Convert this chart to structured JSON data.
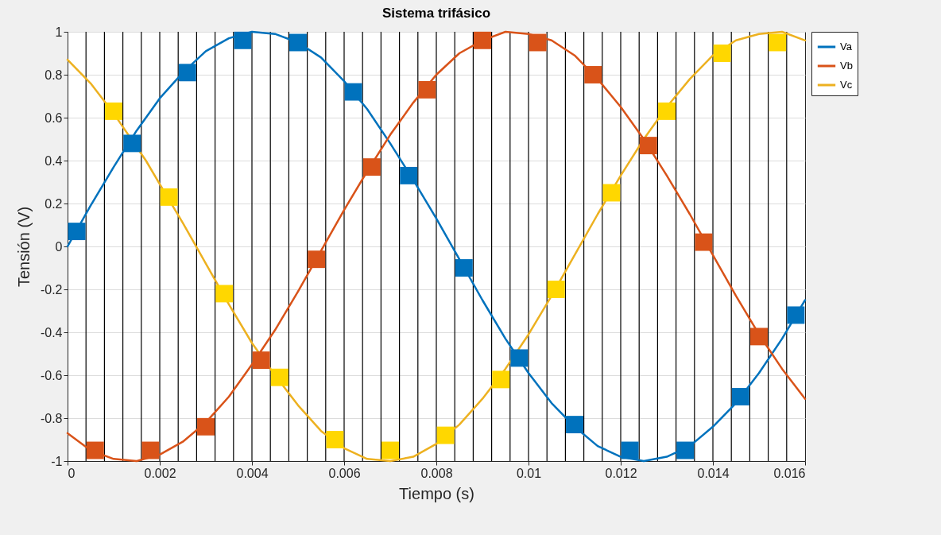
{
  "chart_data": {
    "type": "line",
    "title": "Sistema trifásico",
    "xlabel": "Tiempo (s)",
    "ylabel": "Tensión (V)",
    "xlim": [
      0,
      0.016
    ],
    "xticks": [
      0,
      0.002,
      0.004,
      0.006,
      0.008,
      0.01,
      0.012,
      0.014,
      0.016
    ],
    "ylim": [
      -1,
      1
    ],
    "yticks": [
      -1,
      -0.8,
      -0.6,
      -0.4,
      -0.2,
      0,
      0.2,
      0.4,
      0.6,
      0.8,
      1
    ],
    "grid": "y",
    "legend": "top right",
    "x": [
      0,
      0.0005,
      0.001,
      0.0015,
      0.002,
      0.0025,
      0.003,
      0.0035,
      0.004,
      0.0045,
      0.005,
      0.0055,
      0.006,
      0.0065,
      0.007,
      0.0075,
      0.008,
      0.0085,
      0.009,
      0.0095,
      0.01,
      0.0105,
      0.011,
      0.0115,
      0.012,
      0.0125,
      0.013,
      0.0135,
      0.014,
      0.0145,
      0.015,
      0.0155,
      0.016
    ],
    "series": [
      {
        "name": "Va",
        "color": "#0072bd",
        "values": [
          0,
          0.19,
          0.37,
          0.54,
          0.69,
          0.81,
          0.91,
          0.97,
          1.0,
          0.99,
          0.95,
          0.88,
          0.77,
          0.64,
          0.48,
          0.31,
          0.13,
          -0.06,
          -0.25,
          -0.43,
          -0.59,
          -0.73,
          -0.84,
          -0.93,
          -0.98,
          -1.0,
          -0.98,
          -0.93,
          -0.84,
          -0.73,
          -0.59,
          -0.43,
          -0.25
        ]
      },
      {
        "name": "Vb",
        "color": "#d95319",
        "values": [
          -0.87,
          -0.95,
          -0.99,
          -1.0,
          -0.97,
          -0.91,
          -0.82,
          -0.7,
          -0.55,
          -0.39,
          -0.21,
          -0.02,
          0.17,
          0.35,
          0.52,
          0.67,
          0.8,
          0.9,
          0.96,
          1.0,
          0.99,
          0.96,
          0.89,
          0.78,
          0.65,
          0.5,
          0.33,
          0.15,
          -0.04,
          -0.23,
          -0.41,
          -0.57,
          -0.71
        ]
      },
      {
        "name": "Vc",
        "color": "#edb120",
        "x": [
          0,
          0.0005,
          0.001,
          0.0017,
          0.002,
          0.0025,
          0.003,
          0.0035,
          0.004,
          0.0045,
          0.005,
          0.0055,
          0.006,
          0.0065,
          0.007,
          0.0075,
          0.008,
          0.0085,
          0.009,
          0.0095,
          0.01,
          0.0105,
          0.011,
          0.0115,
          0.012,
          0.0125,
          0.013,
          0.0135,
          0.014,
          0.0145,
          0.015,
          0.0155,
          0.016
        ],
        "values": [
          0.87,
          0.76,
          0.62,
          0.4,
          0.29,
          0.11,
          -0.08,
          -0.27,
          -0.45,
          -0.6,
          -0.74,
          -0.86,
          -0.94,
          -0.99,
          -1.0,
          -0.98,
          -0.92,
          -0.83,
          -0.71,
          -0.57,
          -0.41,
          -0.23,
          -0.04,
          0.15,
          0.33,
          0.5,
          0.65,
          0.78,
          0.89,
          0.96,
          0.99,
          1.0,
          0.96
        ]
      },
      {
        "type": "scatter",
        "marker": "square",
        "color": "#0072bd",
        "x": [
          0.0002,
          0.0014,
          0.0026,
          0.0038,
          0.005,
          0.0062,
          0.0074,
          0.0086,
          0.0098,
          0.011,
          0.0122,
          0.0134,
          0.0146,
          0.0158
        ],
        "values": [
          0.07,
          0.48,
          0.81,
          0.96,
          0.95,
          0.72,
          0.33,
          -0.1,
          -0.52,
          -0.83,
          -0.95,
          -0.95,
          -0.7,
          -0.32
        ]
      },
      {
        "type": "scatter",
        "marker": "square",
        "color": "#d95319",
        "x": [
          0.0006,
          0.0018,
          0.003,
          0.0042,
          0.0054,
          0.0066,
          0.0078,
          0.009,
          0.0102,
          0.0114,
          0.0126,
          0.0138,
          0.015
        ],
        "values": [
          -0.95,
          -0.95,
          -0.84,
          -0.53,
          -0.06,
          0.37,
          0.73,
          0.96,
          0.95,
          0.8,
          0.47,
          0.02,
          -0.42
        ]
      },
      {
        "type": "scatter",
        "marker": "square",
        "color": "#ffd700",
        "x": [
          0.001,
          0.0022,
          0.0034,
          0.0046,
          0.0058,
          0.007,
          0.0082,
          0.0094,
          0.0106,
          0.0118,
          0.013,
          0.0142,
          0.0154
        ],
        "values": [
          0.63,
          0.23,
          -0.22,
          -0.61,
          -0.9,
          -0.95,
          -0.88,
          -0.62,
          -0.2,
          0.25,
          0.63,
          0.9,
          0.95
        ]
      }
    ],
    "ref_lines": [
      {
        "axis": "x",
        "value": 0.0004,
        "color": "#000000"
      },
      {
        "axis": "x",
        "value": 0.0008,
        "color": "#000000"
      },
      {
        "axis": "x",
        "value": 0.0012,
        "color": "#000000"
      },
      {
        "axis": "x",
        "value": 0.0016,
        "color": "#000000"
      },
      {
        "axis": "x",
        "value": 0.002,
        "color": "#000000"
      },
      {
        "axis": "x",
        "value": 0.0024,
        "color": "#000000"
      },
      {
        "axis": "x",
        "value": 0.0028,
        "color": "#000000"
      },
      {
        "axis": "x",
        "value": 0.0032,
        "color": "#000000"
      },
      {
        "axis": "x",
        "value": 0.0036,
        "color": "#000000"
      },
      {
        "axis": "x",
        "value": 0.004,
        "color": "#000000"
      },
      {
        "axis": "x",
        "value": 0.0044,
        "color": "#000000"
      },
      {
        "axis": "x",
        "value": 0.0048,
        "color": "#000000"
      },
      {
        "axis": "x",
        "value": 0.0052,
        "color": "#000000"
      },
      {
        "axis": "x",
        "value": 0.0056,
        "color": "#000000"
      },
      {
        "axis": "x",
        "value": 0.006,
        "color": "#000000"
      },
      {
        "axis": "x",
        "value": 0.0064,
        "color": "#000000"
      },
      {
        "axis": "x",
        "value": 0.0068,
        "color": "#000000"
      },
      {
        "axis": "x",
        "value": 0.0072,
        "color": "#000000"
      },
      {
        "axis": "x",
        "value": 0.0076,
        "color": "#000000"
      },
      {
        "axis": "x",
        "value": 0.008,
        "color": "#000000"
      },
      {
        "axis": "x",
        "value": 0.0084,
        "color": "#000000"
      },
      {
        "axis": "x",
        "value": 0.0088,
        "color": "#000000"
      },
      {
        "axis": "x",
        "value": 0.0092,
        "color": "#000000"
      },
      {
        "axis": "x",
        "value": 0.0096,
        "color": "#000000"
      },
      {
        "axis": "x",
        "value": 0.01,
        "color": "#000000"
      },
      {
        "axis": "x",
        "value": 0.0104,
        "color": "#000000"
      },
      {
        "axis": "x",
        "value": 0.0108,
        "color": "#000000"
      },
      {
        "axis": "x",
        "value": 0.0112,
        "color": "#000000"
      },
      {
        "axis": "x",
        "value": 0.0116,
        "color": "#000000"
      },
      {
        "axis": "x",
        "value": 0.012,
        "color": "#000000"
      },
      {
        "axis": "x",
        "value": 0.0124,
        "color": "#000000"
      },
      {
        "axis": "x",
        "value": 0.0128,
        "color": "#000000"
      },
      {
        "axis": "x",
        "value": 0.0132,
        "color": "#000000"
      },
      {
        "axis": "x",
        "value": 0.0136,
        "color": "#000000"
      },
      {
        "axis": "x",
        "value": 0.014,
        "color": "#000000"
      },
      {
        "axis": "x",
        "value": 0.0144,
        "color": "#000000"
      },
      {
        "axis": "x",
        "value": 0.0148,
        "color": "#000000"
      },
      {
        "axis": "x",
        "value": 0.0152,
        "color": "#000000"
      },
      {
        "axis": "x",
        "value": 0.0156,
        "color": "#000000"
      }
    ]
  }
}
